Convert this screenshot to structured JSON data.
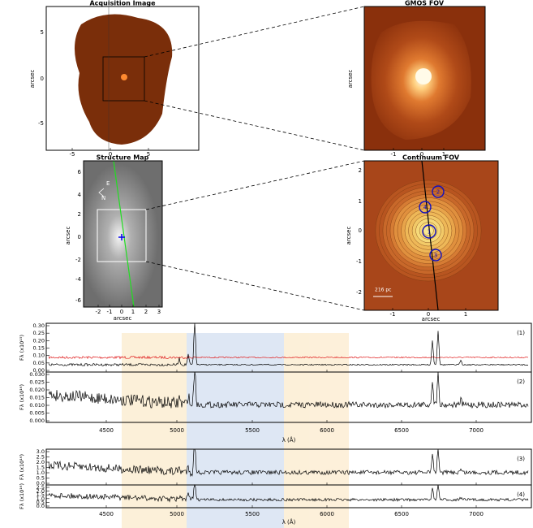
{
  "panels": [
    {
      "title": "Acquisition Image",
      "ylabel": "arcsec",
      "yticks": [
        "5",
        "0",
        "-5"
      ],
      "xticks": [
        "-5",
        "0",
        "5"
      ]
    },
    {
      "title": "GMOS FOV",
      "ylabel": "arcsec",
      "xticks": [
        "-1",
        "0",
        "1"
      ]
    },
    {
      "title": "Structure Map",
      "ylabel": "arcsec",
      "xlabel": "arcsec",
      "yticks": [
        "6",
        "4",
        "2",
        "0",
        "-2",
        "-4",
        "-6"
      ],
      "xticks": [
        "-2",
        "-1",
        "0",
        "1",
        "2",
        "3"
      ],
      "compass": [
        "E",
        "N"
      ]
    },
    {
      "title": "Continuum FOV",
      "ylabel": "arcsec",
      "xlabel": "arcsec",
      "yticks": [
        "2",
        "1",
        "0",
        "-1",
        "-2"
      ],
      "xticks": [
        "-1",
        "0",
        "1"
      ],
      "scale_bar": "216 pc",
      "apertures": [
        "1",
        "2",
        "3",
        "4"
      ]
    }
  ],
  "spectra": [
    {
      "xlabel": "λ (Å)",
      "xticks": [
        "4500",
        "5000",
        "5500",
        "6000",
        "6500",
        "7000"
      ],
      "subpanels": [
        {
          "tag": "(1)",
          "ylabel": "Fλ (x10¹⁵)",
          "yticks": [
            "0.30",
            "0.25",
            "0.20",
            "0.15",
            "0.10",
            "0.05",
            "0.00"
          ]
        },
        {
          "tag": "(2)",
          "ylabel": "Fλ (x10¹⁶)",
          "yticks": [
            "0.030",
            "0.025",
            "0.020",
            "0.015",
            "0.010",
            "0.005",
            "0.000"
          ]
        }
      ]
    },
    {
      "xlabel": "λ (Å)",
      "xticks": [
        "4500",
        "5000",
        "5500",
        "6000",
        "6500",
        "7000"
      ],
      "subpanels": [
        {
          "tag": "(3)",
          "ylabel": "Fλ (x10¹⁶)",
          "yticks": [
            "3.0",
            "2.5",
            "2.0",
            "1.5",
            "1.0",
            "0.5",
            "0.0"
          ]
        },
        {
          "tag": "(4)",
          "ylabel": "Fλ (x10¹⁶)",
          "yticks": [
            "2.5",
            "2.0",
            "1.5",
            "1.0",
            "0.5",
            "0.0"
          ]
        }
      ]
    }
  ]
}
